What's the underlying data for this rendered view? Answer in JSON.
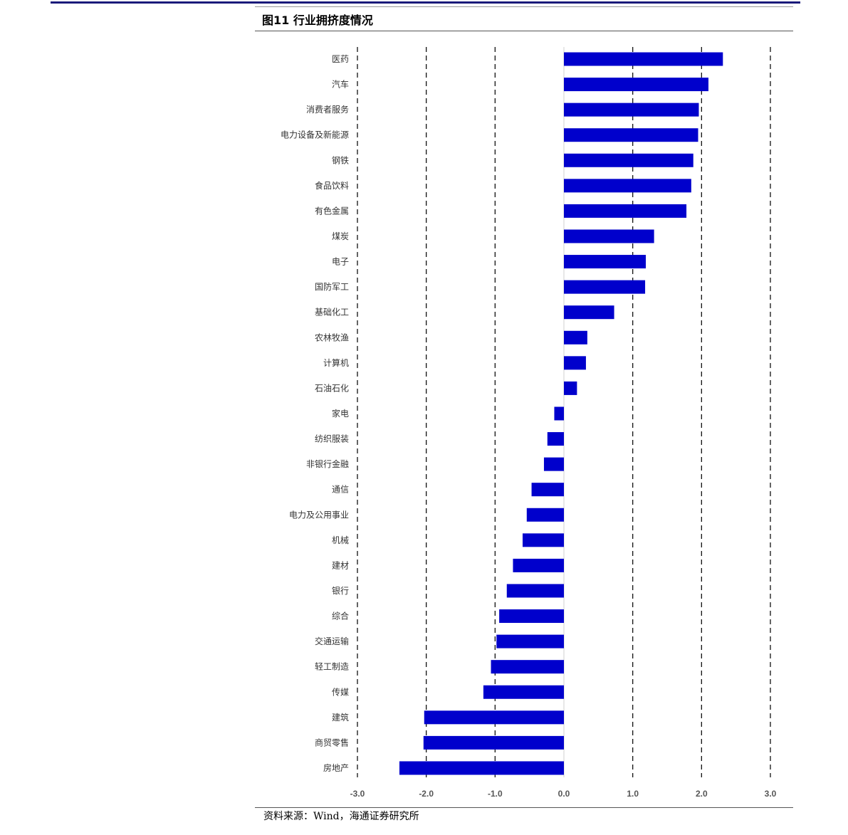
{
  "figure": {
    "title": "图11 行业拥挤度情况",
    "source": "资料来源：Wind，海通证券研究所"
  },
  "colors": {
    "bar": "#0000cc",
    "top_rule": "#1a1a7a"
  },
  "chart_data": {
    "type": "bar",
    "orientation": "horizontal",
    "title": "",
    "xlabel": "",
    "ylabel": "",
    "xlim": [
      -3.0,
      3.0
    ],
    "ticks": [
      "-3.0",
      "-2.0",
      "-1.0",
      "0.0",
      "1.0",
      "2.0",
      "3.0"
    ],
    "grid": "dashed vertical lines at integer ticks",
    "categories": [
      "医药",
      "汽车",
      "消费者服务",
      "电力设备及新能源",
      "钢铁",
      "食品饮料",
      "有色金属",
      "煤炭",
      "电子",
      "国防军工",
      "基础化工",
      "农林牧渔",
      "计算机",
      "石油石化",
      "家电",
      "纺织服装",
      "非银行金融",
      "通信",
      "电力及公用事业",
      "机械",
      "建材",
      "银行",
      "综合",
      "交通运输",
      "轻工制造",
      "传媒",
      "建筑",
      "商贸零售",
      "房地产"
    ],
    "values": [
      2.31,
      2.1,
      1.96,
      1.95,
      1.88,
      1.85,
      1.78,
      1.31,
      1.19,
      1.18,
      0.73,
      0.34,
      0.32,
      0.19,
      -0.14,
      -0.24,
      -0.29,
      -0.47,
      -0.54,
      -0.6,
      -0.74,
      -0.83,
      -0.94,
      -0.98,
      -1.06,
      -1.17,
      -2.03,
      -2.04,
      -2.39
    ]
  }
}
